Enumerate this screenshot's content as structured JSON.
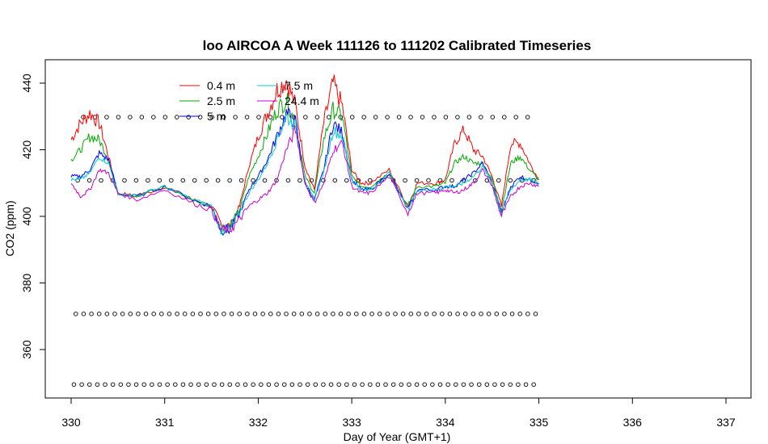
{
  "chart_data": {
    "type": "line",
    "title": "loo AIRCOA A  Week 111126 to 111202  Calibrated Timeseries",
    "xlabel": "Day of Year (GMT+1)",
    "ylabel": "CO2 (ppm)",
    "xlim": [
      330,
      337
    ],
    "ylim": [
      348,
      445
    ],
    "xticks": [
      330,
      331,
      332,
      333,
      334,
      335,
      336,
      337
    ],
    "yticks": [
      360,
      380,
      400,
      420,
      440
    ],
    "xtick_labels": [
      "330",
      "331",
      "332",
      "333",
      "334",
      "335",
      "336",
      "337"
    ],
    "ytick_labels": [
      "360",
      "380",
      "400",
      "420",
      "440"
    ],
    "legend": {
      "placement": "top-left",
      "entries": [
        {
          "label": "0.4 m",
          "color": "#ff0000"
        },
        {
          "label": "2.5 m",
          "color": "#00aa00"
        },
        {
          "label": "5 m",
          "color": "#0000ff"
        },
        {
          "label": "7.5 m",
          "color": "#00cccc"
        },
        {
          "label": "24.4 m",
          "color": "#cc00cc"
        }
      ]
    },
    "series": [
      {
        "name": "0.4 m",
        "color": "#ff0000",
        "x": [
          330.0,
          330.1,
          330.2,
          330.3,
          330.4,
          330.5,
          330.7,
          331.0,
          331.3,
          331.5,
          331.6,
          331.7,
          331.8,
          331.9,
          332.0,
          332.1,
          332.2,
          332.3,
          332.4,
          332.5,
          332.6,
          332.7,
          332.8,
          332.9,
          333.0,
          333.1,
          333.2,
          333.4,
          333.6,
          333.7,
          333.9,
          334.0,
          334.1,
          334.2,
          334.3,
          334.4,
          334.5,
          334.6,
          334.7,
          334.8,
          334.9,
          335.0
        ],
        "y": [
          423,
          428,
          431,
          428,
          418,
          407,
          406,
          409,
          405,
          403,
          398,
          397,
          403,
          415,
          424,
          431,
          438,
          441,
          433,
          415,
          408,
          428,
          440,
          433,
          414,
          410,
          410,
          414,
          403,
          410,
          410,
          411,
          422,
          426,
          420,
          418,
          412,
          403,
          422,
          422,
          416,
          411
        ]
      },
      {
        "name": "2.5 m",
        "color": "#00aa00",
        "x": [
          330.0,
          330.1,
          330.2,
          330.3,
          330.4,
          330.5,
          330.7,
          331.0,
          331.3,
          331.5,
          331.6,
          331.7,
          331.8,
          331.9,
          332.0,
          332.1,
          332.2,
          332.3,
          332.4,
          332.5,
          332.6,
          332.7,
          332.8,
          332.9,
          333.0,
          333.1,
          333.2,
          333.4,
          333.6,
          333.7,
          333.9,
          334.0,
          334.1,
          334.2,
          334.3,
          334.4,
          334.5,
          334.6,
          334.7,
          334.8,
          334.9,
          335.0
        ],
        "y": [
          417,
          420,
          424,
          423,
          417,
          407,
          406,
          409,
          405,
          403,
          397,
          397,
          402,
          412,
          418,
          425,
          432,
          435,
          428,
          412,
          407,
          423,
          432,
          430,
          412,
          409,
          409,
          413,
          403,
          409,
          409,
          410,
          416,
          418,
          416,
          416,
          411,
          402,
          416,
          418,
          414,
          411
        ]
      },
      {
        "name": "5 m",
        "color": "#0000ff",
        "x": [
          330.0,
          330.1,
          330.2,
          330.3,
          330.4,
          330.5,
          330.7,
          331.0,
          331.3,
          331.5,
          331.6,
          331.7,
          331.8,
          331.9,
          332.0,
          332.1,
          332.2,
          332.3,
          332.4,
          332.5,
          332.6,
          332.7,
          332.8,
          332.9,
          333.0,
          333.1,
          333.2,
          333.4,
          333.6,
          333.7,
          333.9,
          334.0,
          334.1,
          334.2,
          334.3,
          334.4,
          334.5,
          334.6,
          334.7,
          334.8,
          334.9,
          335.0
        ],
        "y": [
          412,
          412,
          414,
          419,
          417,
          407,
          406,
          409,
          405,
          403,
          396,
          396,
          401,
          408,
          412,
          417,
          424,
          431,
          428,
          410,
          405,
          414,
          428,
          425,
          411,
          408,
          408,
          413,
          402,
          408,
          408,
          409,
          409,
          411,
          413,
          416,
          410,
          401,
          409,
          412,
          411,
          410
        ]
      },
      {
        "name": "7.5 m",
        "color": "#00cccc",
        "x": [
          330.0,
          330.1,
          330.2,
          330.3,
          330.4,
          330.5,
          330.7,
          331.0,
          331.3,
          331.5,
          331.6,
          331.7,
          331.8,
          331.9,
          332.0,
          332.1,
          332.2,
          332.3,
          332.4,
          332.5,
          332.6,
          332.7,
          332.8,
          332.9,
          333.0,
          333.1,
          333.2,
          333.4,
          333.6,
          333.7,
          333.9,
          334.0,
          334.1,
          334.2,
          334.3,
          334.4,
          334.5,
          334.6,
          334.7,
          334.8,
          334.9,
          335.0
        ],
        "y": [
          411,
          411,
          413,
          418,
          416,
          407,
          406,
          409,
          405,
          403,
          396,
          396,
          401,
          407,
          411,
          416,
          423,
          430,
          427,
          410,
          405,
          413,
          426,
          424,
          411,
          408,
          408,
          413,
          402,
          408,
          408,
          409,
          409,
          410,
          412,
          415,
          410,
          401,
          408,
          411,
          411,
          410
        ]
      },
      {
        "name": "24.4 m",
        "color": "#cc00cc",
        "x": [
          330.0,
          330.1,
          330.2,
          330.3,
          330.4,
          330.5,
          330.7,
          331.0,
          331.3,
          331.5,
          331.6,
          331.7,
          331.8,
          331.9,
          332.0,
          332.1,
          332.2,
          332.3,
          332.4,
          332.5,
          332.6,
          332.7,
          332.8,
          332.9,
          333.0,
          333.1,
          333.2,
          333.4,
          333.6,
          333.7,
          333.9,
          334.0,
          334.1,
          334.2,
          334.3,
          334.4,
          334.5,
          334.6,
          334.7,
          334.8,
          334.9,
          335.0
        ],
        "y": [
          410,
          406,
          408,
          414,
          413,
          407,
          405,
          408,
          404,
          402,
          396,
          396,
          399,
          403,
          405,
          407,
          411,
          420,
          426,
          410,
          404,
          410,
          420,
          422,
          409,
          407,
          407,
          412,
          401,
          407,
          407,
          408,
          407,
          408,
          410,
          414,
          409,
          400,
          406,
          409,
          410,
          409
        ]
      }
    ],
    "marker_rows": [
      {
        "y": 429.8,
        "start": 330.13,
        "step": 0.125
      },
      {
        "y": 410.8,
        "start": 330.07,
        "step": 0.125
      },
      {
        "y": 370.7,
        "start": 330.05,
        "step": 0.0833
      },
      {
        "y": 349.5,
        "start": 330.03,
        "step": 0.0833
      }
    ],
    "grid": false
  }
}
